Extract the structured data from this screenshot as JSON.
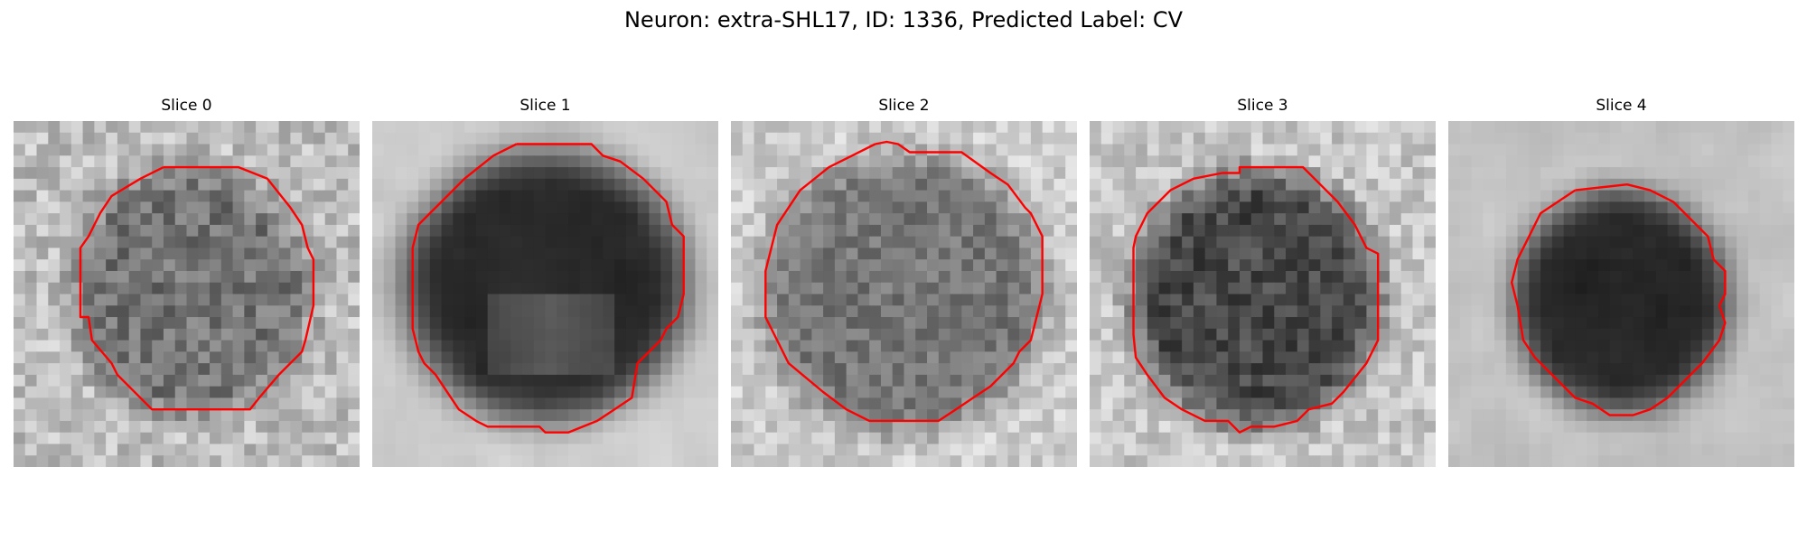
{
  "figure": {
    "title": "Neuron: extra-SHL17, ID: 1336, Predicted Label: CV"
  },
  "colors": {
    "contour": "#ff0000",
    "background": "#ffffff"
  },
  "panels": [
    {
      "title": "Slice 0",
      "image": "grayscale-em-patch-mottled-nucleus",
      "contour": "red-outline"
    },
    {
      "title": "Slice 1",
      "image": "grayscale-em-patch-dark-nucleus",
      "contour": "red-outline"
    },
    {
      "title": "Slice 2",
      "image": "grayscale-em-patch-gray-nucleus",
      "contour": "red-outline"
    },
    {
      "title": "Slice 3",
      "image": "grayscale-em-patch-dark-mottled-nucleus",
      "contour": "red-outline"
    },
    {
      "title": "Slice 4",
      "image": "grayscale-em-patch-very-dark-nucleus",
      "contour": "red-outline"
    }
  ]
}
